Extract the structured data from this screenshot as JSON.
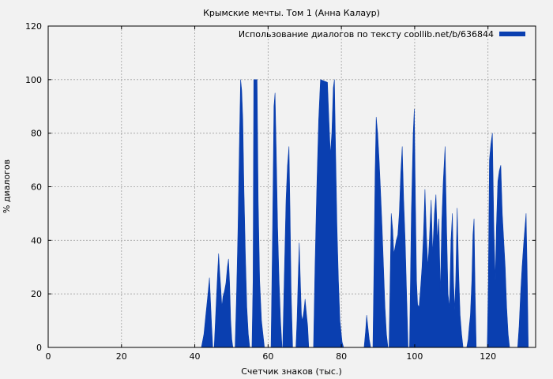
{
  "chart_data": {
    "type": "area",
    "title": "Крымские мечты. Том 1 (Анна Калаур)",
    "xlabel": "Счетчик знаков (тыс.)",
    "ylabel": "% диалогов",
    "xlim": [
      0,
      133
    ],
    "ylim": [
      0,
      120
    ],
    "x_ticks": [
      0,
      20,
      40,
      60,
      80,
      100,
      120
    ],
    "y_ticks": [
      0,
      20,
      40,
      60,
      80,
      100,
      120
    ],
    "grid": true,
    "legend_position": "top-right",
    "series": [
      {
        "name": "Использование диалогов по тексту coollib.net/b/636844",
        "color": "#0a3fb0",
        "points": [
          [
            0,
            0
          ],
          [
            41.8,
            0
          ],
          [
            42.5,
            5
          ],
          [
            43,
            12
          ],
          [
            43.6,
            20
          ],
          [
            44,
            26
          ],
          [
            44.3,
            17
          ],
          [
            44.6,
            8
          ],
          [
            44.9,
            0
          ],
          [
            45.3,
            0
          ],
          [
            45.8,
            15
          ],
          [
            46.2,
            27
          ],
          [
            46.5,
            35
          ],
          [
            46.8,
            28
          ],
          [
            47.1,
            22
          ],
          [
            47.4,
            15
          ],
          [
            47.7,
            19
          ],
          [
            48.1,
            21
          ],
          [
            48.5,
            24
          ],
          [
            48.9,
            30
          ],
          [
            49.2,
            33
          ],
          [
            49.5,
            24
          ],
          [
            49.8,
            10
          ],
          [
            50.1,
            3
          ],
          [
            50.4,
            0
          ],
          [
            51,
            0
          ],
          [
            51.4,
            20
          ],
          [
            51.8,
            45
          ],
          [
            52.2,
            78
          ],
          [
            52.5,
            100
          ],
          [
            52.8,
            96
          ],
          [
            53.1,
            85
          ],
          [
            53.4,
            60
          ],
          [
            53.8,
            35
          ],
          [
            54.2,
            15
          ],
          [
            54.6,
            5
          ],
          [
            55,
            0
          ],
          [
            55.6,
            0
          ],
          [
            55.9,
            25
          ],
          [
            56.1,
            100
          ],
          [
            57,
            100
          ],
          [
            57.3,
            55
          ],
          [
            57.7,
            25
          ],
          [
            58.2,
            10
          ],
          [
            58.6,
            5
          ],
          [
            59,
            0
          ],
          [
            60.8,
            0
          ],
          [
            61.2,
            40
          ],
          [
            61.6,
            90
          ],
          [
            61.9,
            95
          ],
          [
            62.2,
            75
          ],
          [
            62.6,
            45
          ],
          [
            63,
            25
          ],
          [
            63.4,
            10
          ],
          [
            63.8,
            0
          ],
          [
            64,
            0
          ],
          [
            64.4,
            25
          ],
          [
            64.9,
            55
          ],
          [
            65.3,
            68
          ],
          [
            65.7,
            75
          ],
          [
            66,
            50
          ],
          [
            66.3,
            20
          ],
          [
            66.7,
            0
          ],
          [
            67.6,
            0
          ],
          [
            67.9,
            10
          ],
          [
            68.2,
            25
          ],
          [
            68.5,
            39
          ],
          [
            68.8,
            25
          ],
          [
            69.1,
            12
          ],
          [
            69.4,
            10
          ],
          [
            69.8,
            14
          ],
          [
            70.1,
            18
          ],
          [
            70.5,
            12
          ],
          [
            70.8,
            8
          ],
          [
            71.1,
            0
          ],
          [
            72.4,
            0
          ],
          [
            72.8,
            30
          ],
          [
            73.3,
            60
          ],
          [
            73.8,
            85
          ],
          [
            74.3,
            100
          ],
          [
            76.2,
            99
          ],
          [
            76.6,
            85
          ],
          [
            77,
            72
          ],
          [
            77.4,
            80
          ],
          [
            77.8,
            97
          ],
          [
            78.1,
            100
          ],
          [
            78.4,
            75
          ],
          [
            78.8,
            45
          ],
          [
            79.2,
            25
          ],
          [
            79.6,
            10
          ],
          [
            80.2,
            2
          ],
          [
            80.6,
            0
          ],
          [
            86.2,
            0
          ],
          [
            86.6,
            6
          ],
          [
            86.9,
            12
          ],
          [
            87.2,
            8
          ],
          [
            87.6,
            3
          ],
          [
            88,
            0
          ],
          [
            88.6,
            0
          ],
          [
            88.9,
            30
          ],
          [
            89.2,
            65
          ],
          [
            89.5,
            86
          ],
          [
            89.9,
            80
          ],
          [
            90.3,
            70
          ],
          [
            90.7,
            58
          ],
          [
            91.1,
            45
          ],
          [
            91.5,
            30
          ],
          [
            91.9,
            15
          ],
          [
            92.3,
            5
          ],
          [
            92.7,
            0
          ],
          [
            93,
            0
          ],
          [
            93.3,
            25
          ],
          [
            93.6,
            50
          ],
          [
            94,
            44
          ],
          [
            94.3,
            35
          ],
          [
            94.6,
            37
          ],
          [
            95,
            40
          ],
          [
            95.4,
            42
          ],
          [
            95.8,
            50
          ],
          [
            96.2,
            65
          ],
          [
            96.6,
            75
          ],
          [
            97,
            55
          ],
          [
            97.4,
            40
          ],
          [
            97.8,
            20
          ],
          [
            98.2,
            0
          ],
          [
            98.6,
            0
          ],
          [
            99.1,
            50
          ],
          [
            99.6,
            80
          ],
          [
            99.9,
            89
          ],
          [
            100.2,
            55
          ],
          [
            100.5,
            25
          ],
          [
            100.8,
            16
          ],
          [
            101.2,
            15
          ],
          [
            101.6,
            22
          ],
          [
            102,
            30
          ],
          [
            102.4,
            42
          ],
          [
            102.8,
            59
          ],
          [
            103.2,
            42
          ],
          [
            103.6,
            30
          ],
          [
            104,
            40
          ],
          [
            104.5,
            55
          ],
          [
            104.9,
            35
          ],
          [
            105.4,
            50
          ],
          [
            105.8,
            57
          ],
          [
            106.2,
            40
          ],
          [
            106.6,
            48
          ],
          [
            107,
            20
          ],
          [
            107.4,
            47
          ],
          [
            107.8,
            62
          ],
          [
            108.3,
            75
          ],
          [
            108.7,
            45
          ],
          [
            109.1,
            20
          ],
          [
            109.5,
            15
          ],
          [
            109.9,
            40
          ],
          [
            110.3,
            50
          ],
          [
            110.6,
            25
          ],
          [
            110.9,
            14
          ],
          [
            111.2,
            25
          ],
          [
            111.6,
            52
          ],
          [
            112,
            28
          ],
          [
            112.4,
            12
          ],
          [
            112.8,
            5
          ],
          [
            113.2,
            0
          ],
          [
            114.2,
            0
          ],
          [
            114.6,
            3
          ],
          [
            114.9,
            8
          ],
          [
            115.2,
            12
          ],
          [
            115.6,
            25
          ],
          [
            115.9,
            42
          ],
          [
            116.2,
            48
          ],
          [
            116.5,
            20
          ],
          [
            116.8,
            0
          ],
          [
            119.8,
            0
          ],
          [
            120.1,
            25
          ],
          [
            120.4,
            70
          ],
          [
            120.8,
            76
          ],
          [
            121.2,
            80
          ],
          [
            121.6,
            45
          ],
          [
            122,
            25
          ],
          [
            122.3,
            45
          ],
          [
            122.7,
            62
          ],
          [
            123.1,
            66
          ],
          [
            123.5,
            68
          ],
          [
            123.9,
            50
          ],
          [
            124.3,
            40
          ],
          [
            124.7,
            30
          ],
          [
            125.1,
            15
          ],
          [
            125.5,
            5
          ],
          [
            125.9,
            0
          ],
          [
            128.1,
            0
          ],
          [
            128.5,
            8
          ],
          [
            128.9,
            20
          ],
          [
            129.3,
            30
          ],
          [
            129.7,
            38
          ],
          [
            130.1,
            45
          ],
          [
            130.4,
            50
          ],
          [
            130.7,
            28
          ],
          [
            131,
            0
          ],
          [
            133,
            0
          ]
        ]
      }
    ]
  }
}
